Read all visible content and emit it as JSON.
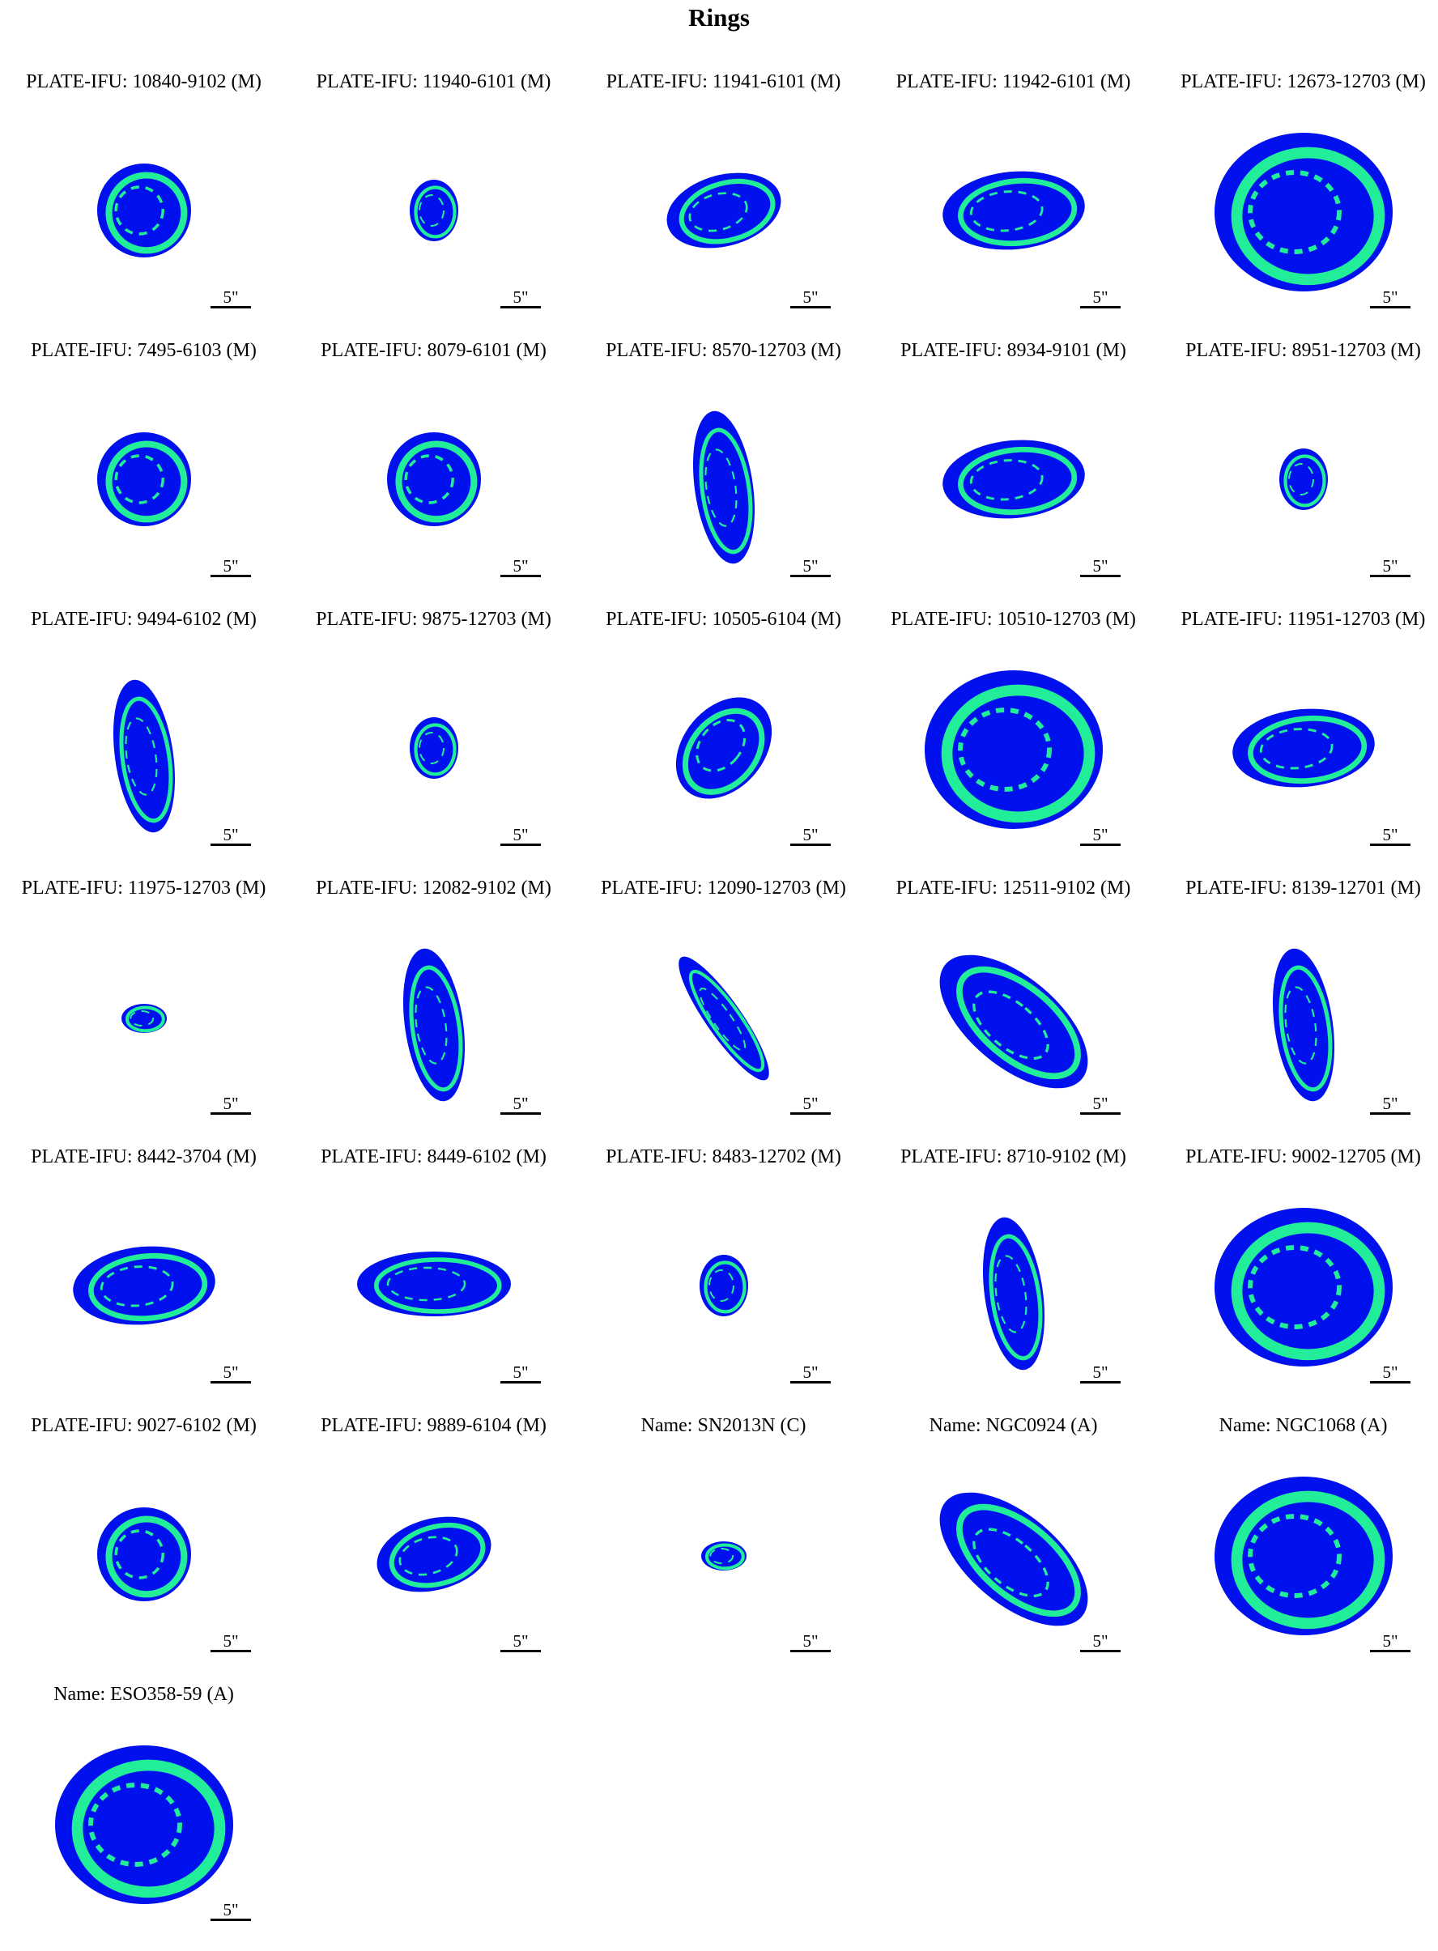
{
  "title": "Rings",
  "scale_label": "5\"",
  "colors": {
    "core": "#0011ee",
    "ring": "#22ee99"
  },
  "panels": [
    {
      "label": "PLATE-IFU: 10840-9102 (M)",
      "shape": "round"
    },
    {
      "label": "PLATE-IFU: 11940-6101 (M)",
      "shape": "small"
    },
    {
      "label": "PLATE-IFU: 11941-6101 (M)",
      "shape": "oval"
    },
    {
      "label": "PLATE-IFU: 11942-6101 (M)",
      "shape": "wide"
    },
    {
      "label": "PLATE-IFU: 12673-12703 (M)",
      "shape": "large"
    },
    {
      "label": "PLATE-IFU: 7495-6103 (M)",
      "shape": "round"
    },
    {
      "label": "PLATE-IFU: 8079-6101 (M)",
      "shape": "round"
    },
    {
      "label": "PLATE-IFU: 8570-12703 (M)",
      "shape": "tall"
    },
    {
      "label": "PLATE-IFU: 8934-9101 (M)",
      "shape": "wide"
    },
    {
      "label": "PLATE-IFU: 8951-12703 (M)",
      "shape": "small"
    },
    {
      "label": "PLATE-IFU: 9494-6102 (M)",
      "shape": "tall"
    },
    {
      "label": "PLATE-IFU: 9875-12703 (M)",
      "shape": "small"
    },
    {
      "label": "PLATE-IFU: 10505-6104 (M)",
      "shape": "tilted"
    },
    {
      "label": "PLATE-IFU: 10510-12703 (M)",
      "shape": "large"
    },
    {
      "label": "PLATE-IFU: 11951-12703 (M)",
      "shape": "wide"
    },
    {
      "label": "PLATE-IFU: 11975-12703 (M)",
      "shape": "tiny"
    },
    {
      "label": "PLATE-IFU: 12082-9102 (M)",
      "shape": "tall"
    },
    {
      "label": "PLATE-IFU: 12090-12703 (M)",
      "shape": "diag"
    },
    {
      "label": "PLATE-IFU: 12511-9102 (M)",
      "shape": "bigdiag"
    },
    {
      "label": "PLATE-IFU: 8139-12701 (M)",
      "shape": "tall"
    },
    {
      "label": "PLATE-IFU: 8442-3704 (M)",
      "shape": "wide"
    },
    {
      "label": "PLATE-IFU: 8449-6102 (M)",
      "shape": "eye"
    },
    {
      "label": "PLATE-IFU: 8483-12702 (M)",
      "shape": "small"
    },
    {
      "label": "PLATE-IFU: 8710-9102 (M)",
      "shape": "tall"
    },
    {
      "label": "PLATE-IFU: 9002-12705 (M)",
      "shape": "large"
    },
    {
      "label": "PLATE-IFU: 9027-6102 (M)",
      "shape": "round"
    },
    {
      "label": "PLATE-IFU: 9889-6104 (M)",
      "shape": "oval"
    },
    {
      "label": "Name: SN2013N (C)",
      "shape": "tiny"
    },
    {
      "label": "Name: NGC0924 (A)",
      "shape": "bigdiag"
    },
    {
      "label": "Name: NGC1068 (A)",
      "shape": "large"
    },
    {
      "label": "Name: ESO358-59 (A)",
      "shape": "large"
    }
  ]
}
